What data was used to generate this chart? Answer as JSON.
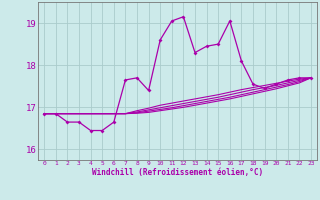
{
  "xlabel": "Windchill (Refroidissement éolien,°C)",
  "bg_color": "#cceaea",
  "line_color": "#aa00aa",
  "grid_color": "#aacccc",
  "x_ticks": [
    0,
    1,
    2,
    3,
    4,
    5,
    6,
    7,
    8,
    9,
    10,
    11,
    12,
    13,
    14,
    15,
    16,
    17,
    18,
    19,
    20,
    21,
    22,
    23
  ],
  "ylim": [
    15.75,
    19.5
  ],
  "yticks": [
    16,
    17,
    18,
    19
  ],
  "xlim": [
    -0.5,
    23.5
  ],
  "main_series": [
    16.85,
    16.85,
    16.65,
    16.65,
    16.45,
    16.45,
    16.65,
    17.65,
    17.7,
    17.4,
    18.6,
    19.05,
    19.15,
    18.3,
    18.45,
    18.5,
    19.05,
    18.1,
    17.55,
    17.45,
    17.55,
    17.65,
    17.7,
    17.7
  ],
  "linear_series": [
    [
      16.85,
      16.85,
      16.85,
      16.85,
      16.85,
      16.85,
      16.85,
      16.85,
      16.92,
      16.98,
      17.05,
      17.1,
      17.15,
      17.2,
      17.25,
      17.3,
      17.36,
      17.42,
      17.47,
      17.52,
      17.57,
      17.62,
      17.67,
      17.7
    ],
    [
      16.85,
      16.85,
      16.85,
      16.85,
      16.85,
      16.85,
      16.85,
      16.85,
      16.89,
      16.94,
      16.99,
      17.04,
      17.09,
      17.14,
      17.19,
      17.24,
      17.3,
      17.36,
      17.42,
      17.47,
      17.52,
      17.58,
      17.64,
      17.7
    ],
    [
      16.85,
      16.85,
      16.85,
      16.85,
      16.85,
      16.85,
      16.85,
      16.85,
      16.87,
      16.91,
      16.95,
      16.99,
      17.04,
      17.09,
      17.14,
      17.19,
      17.24,
      17.3,
      17.36,
      17.42,
      17.48,
      17.54,
      17.61,
      17.7
    ],
    [
      16.85,
      16.85,
      16.85,
      16.85,
      16.85,
      16.85,
      16.85,
      16.85,
      16.86,
      16.88,
      16.92,
      16.96,
      17.0,
      17.05,
      17.1,
      17.15,
      17.2,
      17.26,
      17.32,
      17.38,
      17.44,
      17.51,
      17.58,
      17.7
    ]
  ]
}
